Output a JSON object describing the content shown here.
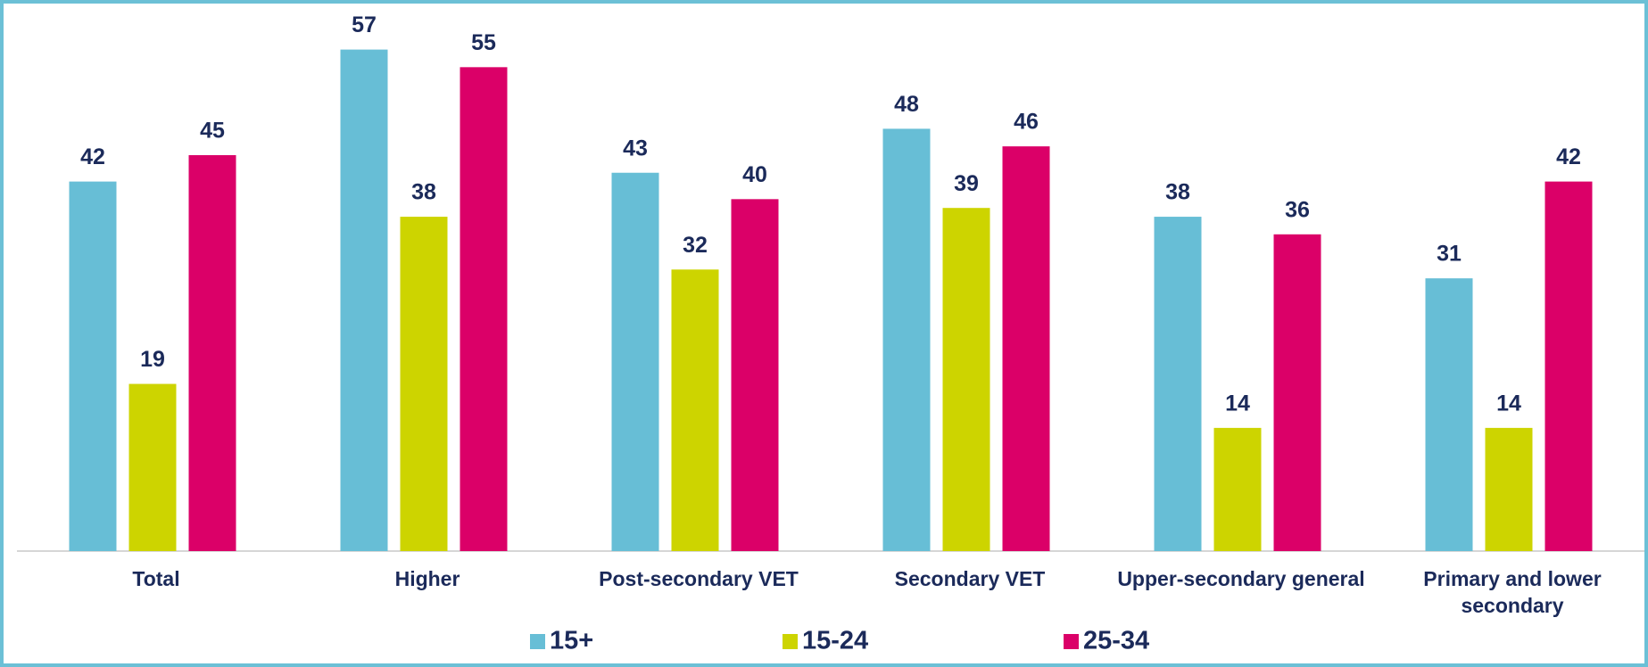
{
  "chart_data": {
    "type": "bar",
    "categories": [
      "Total",
      "Higher",
      "Post-secondary VET",
      "Secondary VET",
      "Upper-secondary general",
      "Primary and lower secondary"
    ],
    "series": [
      {
        "name": "15+",
        "color": "#67bed6",
        "values": [
          42,
          57,
          43,
          48,
          38,
          31
        ]
      },
      {
        "name": "15-24",
        "color": "#cdd400",
        "values": [
          19,
          38,
          32,
          39,
          14,
          14
        ]
      },
      {
        "name": "25-34",
        "color": "#db0068",
        "values": [
          45,
          55,
          40,
          46,
          36,
          42
        ]
      }
    ],
    "ylim": [
      0,
      60
    ]
  }
}
